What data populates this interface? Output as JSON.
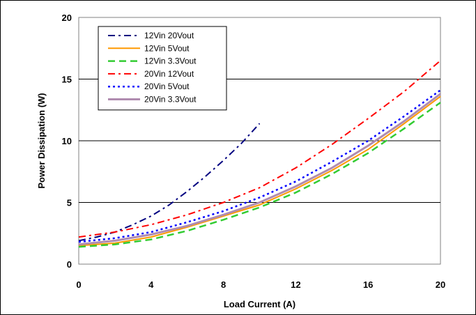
{
  "chart_data": {
    "type": "line",
    "xlabel": "Load Current (A)",
    "ylabel": "Power Dissipation (W)",
    "xlim": [
      0,
      20
    ],
    "ylim": [
      0,
      20
    ],
    "x_ticks": [
      0,
      4,
      8,
      12,
      16,
      20
    ],
    "y_ticks": [
      0,
      5,
      10,
      15,
      20
    ],
    "x_tick_labels": [
      "0",
      "4",
      "8",
      "12",
      "16",
      "20"
    ],
    "y_tick_labels": [
      "0",
      "5",
      "10",
      "15",
      "20"
    ],
    "grid": "horizontal",
    "legend_position": "top-left",
    "series": [
      {
        "name": "12Vin 20Vout",
        "color": "#000080",
        "dash": "dash-dot",
        "x": [
          0,
          1,
          2,
          3,
          4,
          5,
          6,
          7,
          8,
          9,
          10
        ],
        "y": [
          1.9,
          2.2,
          2.6,
          3.2,
          3.9,
          4.8,
          5.9,
          7.1,
          8.4,
          9.8,
          11.4
        ]
      },
      {
        "name": "12Vin 5Vout",
        "color": "#FF9900",
        "dash": "solid",
        "x": [
          0,
          2,
          4,
          6,
          8,
          10,
          12,
          14,
          16,
          18,
          20
        ],
        "y": [
          1.5,
          1.7,
          2.2,
          3.0,
          3.9,
          4.8,
          6.1,
          7.6,
          9.3,
          11.4,
          13.6
        ]
      },
      {
        "name": "12Vin 3.3Vout",
        "color": "#33CC33",
        "dash": "dash",
        "x": [
          0,
          2,
          4,
          6,
          8,
          10,
          12,
          14,
          16,
          18,
          20
        ],
        "y": [
          1.4,
          1.6,
          2.0,
          2.7,
          3.6,
          4.6,
          5.8,
          7.3,
          9.0,
          11.0,
          13.1
        ]
      },
      {
        "name": "20Vin 12Vout",
        "color": "#FF0000",
        "dash": "dash-dot",
        "x": [
          0,
          2,
          4,
          6,
          8,
          10,
          12,
          14,
          16,
          18,
          20
        ],
        "y": [
          2.2,
          2.6,
          3.2,
          4.0,
          5.0,
          6.2,
          7.8,
          9.7,
          11.8,
          14.0,
          16.5
        ]
      },
      {
        "name": "20Vin 5Vout",
        "color": "#0000FF",
        "dash": "dot",
        "x": [
          0,
          2,
          4,
          6,
          8,
          10,
          12,
          14,
          16,
          18,
          20
        ],
        "y": [
          1.8,
          2.1,
          2.6,
          3.4,
          4.3,
          5.4,
          6.7,
          8.3,
          10.0,
          12.0,
          14.1
        ]
      },
      {
        "name": "20Vin 3.3Vout",
        "color": "#B08CB0",
        "dash": "solid-thick",
        "x": [
          0,
          2,
          4,
          6,
          8,
          10,
          12,
          14,
          16,
          18,
          20
        ],
        "y": [
          1.6,
          1.9,
          2.4,
          3.1,
          4.0,
          5.0,
          6.3,
          7.8,
          9.6,
          11.6,
          13.8
        ]
      }
    ]
  }
}
